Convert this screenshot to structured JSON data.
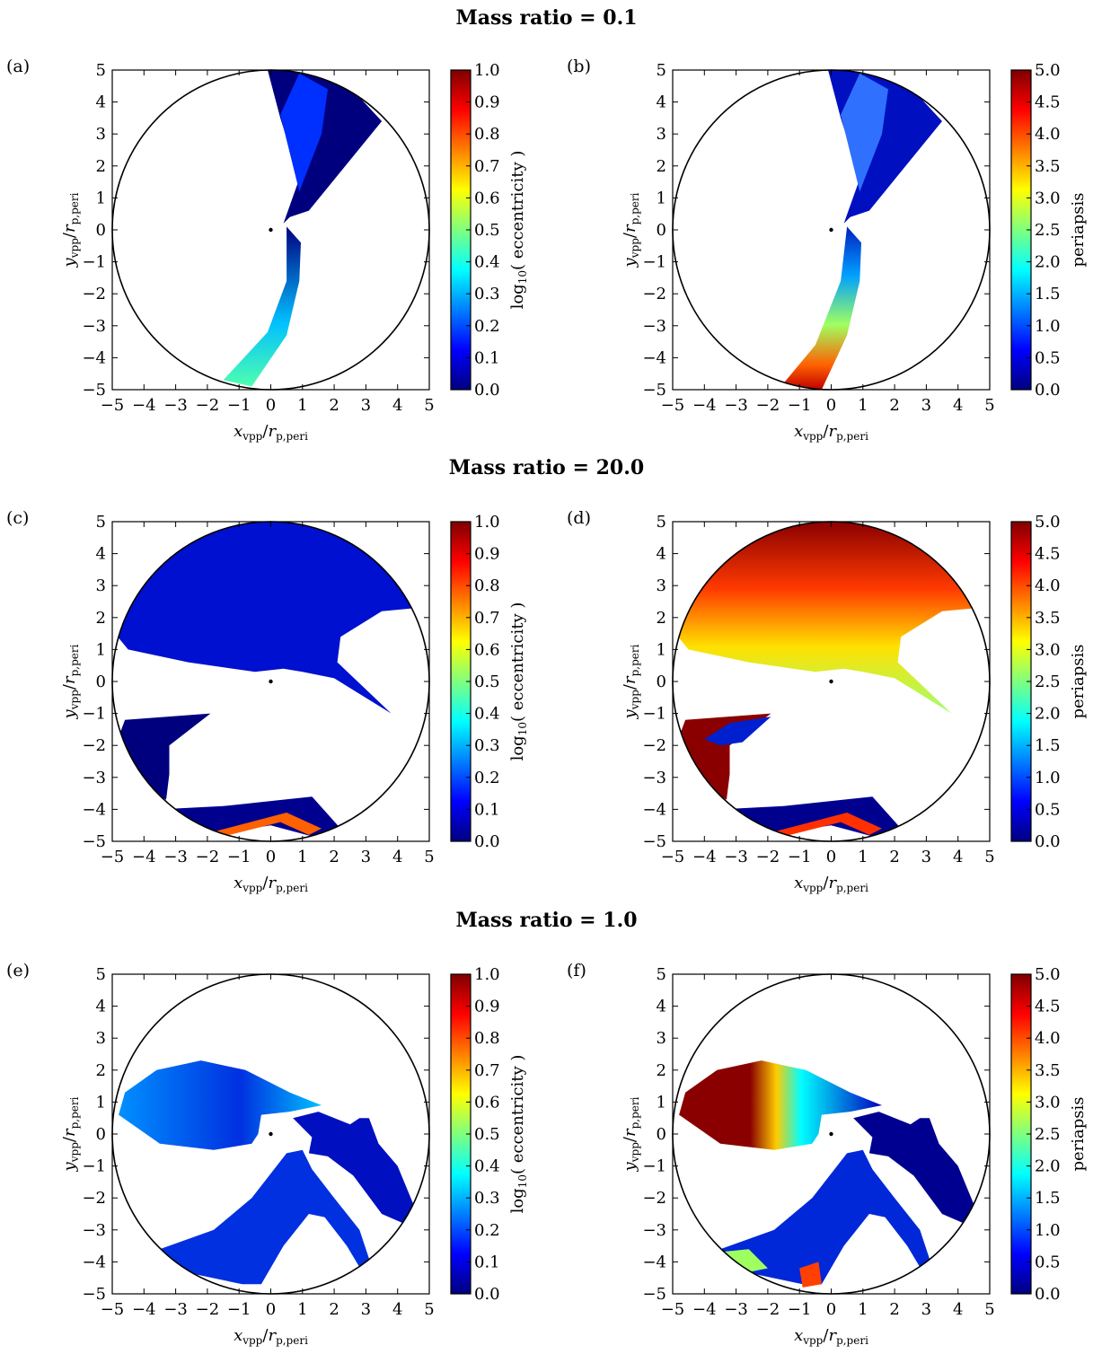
{
  "row_titles": [
    "Mass ratio = 0.1",
    "Mass ratio = 20.0",
    "Mass ratio = 1.0"
  ],
  "colormap": [
    "#00007f",
    "#0000ff",
    "#007fff",
    "#00ffff",
    "#7fff7f",
    "#ffff00",
    "#ff7f00",
    "#ff0000",
    "#7f0000"
  ],
  "chart_data": [
    {
      "panel": "(a)",
      "type": "heatmap",
      "row_title": "Mass ratio = 0.1",
      "xlabel": "x_vpp/r_p,peri",
      "ylabel": "y_vpp/r_p,peri",
      "xlim": [
        -5,
        5
      ],
      "ylim": [
        -5,
        5
      ],
      "xticks": [
        "−5",
        "−4",
        "−3",
        "−2",
        "−1",
        "0",
        "1",
        "2",
        "3",
        "4",
        "5"
      ],
      "yticks": [
        "−5",
        "−4",
        "−3",
        "−2",
        "−1",
        "0",
        "1",
        "2",
        "3",
        "4",
        "5"
      ],
      "colorbar_label": "log10( eccentricity )",
      "colorbar_range": [
        0.0,
        1.0
      ],
      "colorbar_ticks": [
        "0.0",
        "0.1",
        "0.2",
        "0.3",
        "0.4",
        "0.5",
        "0.6",
        "0.7",
        "0.8",
        "0.9",
        "1.0"
      ],
      "boundary_radius": 5,
      "central_point": [
        0,
        0
      ]
    },
    {
      "panel": "(b)",
      "type": "heatmap",
      "row_title": "Mass ratio = 0.1",
      "xlabel": "x_vpp/r_p,peri",
      "ylabel": "y_vpp/r_p,peri",
      "xlim": [
        -5,
        5
      ],
      "ylim": [
        -5,
        5
      ],
      "xticks": [
        "−5",
        "−4",
        "−3",
        "−2",
        "−1",
        "0",
        "1",
        "2",
        "3",
        "4",
        "5"
      ],
      "yticks": [
        "−5",
        "−4",
        "−3",
        "−2",
        "−1",
        "0",
        "1",
        "2",
        "3",
        "4",
        "5"
      ],
      "colorbar_label": "periapsis",
      "colorbar_range": [
        0.0,
        5.0
      ],
      "colorbar_ticks": [
        "0.0",
        "0.5",
        "1.0",
        "1.5",
        "2.0",
        "2.5",
        "3.0",
        "3.5",
        "4.0",
        "4.5",
        "5.0"
      ],
      "boundary_radius": 5,
      "central_point": [
        0,
        0
      ]
    },
    {
      "panel": "(c)",
      "type": "heatmap",
      "row_title": "Mass ratio = 20.0",
      "xlabel": "x_vpp/r_p,peri",
      "ylabel": "y_vpp/r_p,peri",
      "xlim": [
        -5,
        5
      ],
      "ylim": [
        -5,
        5
      ],
      "xticks": [
        "−5",
        "−4",
        "−3",
        "−2",
        "−1",
        "0",
        "1",
        "2",
        "3",
        "4",
        "5"
      ],
      "yticks": [
        "−5",
        "−4",
        "−3",
        "−2",
        "−1",
        "0",
        "1",
        "2",
        "3",
        "4",
        "5"
      ],
      "colorbar_label": "log10( eccentricity )",
      "colorbar_range": [
        0.0,
        1.0
      ],
      "colorbar_ticks": [
        "0.0",
        "0.1",
        "0.2",
        "0.3",
        "0.4",
        "0.5",
        "0.6",
        "0.7",
        "0.8",
        "0.9",
        "1.0"
      ],
      "boundary_radius": 5,
      "central_point": [
        0,
        0
      ]
    },
    {
      "panel": "(d)",
      "type": "heatmap",
      "row_title": "Mass ratio = 20.0",
      "xlabel": "x_vpp/r_p,peri",
      "ylabel": "y_vpp/r_p,peri",
      "xlim": [
        -5,
        5
      ],
      "ylim": [
        -5,
        5
      ],
      "xticks": [
        "−5",
        "−4",
        "−3",
        "−2",
        "−1",
        "0",
        "1",
        "2",
        "3",
        "4",
        "5"
      ],
      "yticks": [
        "−5",
        "−4",
        "−3",
        "−2",
        "−1",
        "0",
        "1",
        "2",
        "3",
        "4",
        "5"
      ],
      "colorbar_label": "periapsis",
      "colorbar_range": [
        0.0,
        5.0
      ],
      "colorbar_ticks": [
        "0.0",
        "0.5",
        "1.0",
        "1.5",
        "2.0",
        "2.5",
        "3.0",
        "3.5",
        "4.0",
        "4.5",
        "5.0"
      ],
      "boundary_radius": 5,
      "central_point": [
        0,
        0
      ]
    },
    {
      "panel": "(e)",
      "type": "heatmap",
      "row_title": "Mass ratio = 1.0",
      "xlabel": "x_vpp/r_p,peri",
      "ylabel": "y_vpp/r_p,peri",
      "xlim": [
        -5,
        5
      ],
      "ylim": [
        -5,
        5
      ],
      "xticks": [
        "−5",
        "−4",
        "−3",
        "−2",
        "−1",
        "0",
        "1",
        "2",
        "3",
        "4",
        "5"
      ],
      "yticks": [
        "−5",
        "−4",
        "−3",
        "−2",
        "−1",
        "0",
        "1",
        "2",
        "3",
        "4",
        "5"
      ],
      "colorbar_label": "log10( eccentricity )",
      "colorbar_range": [
        0.0,
        1.0
      ],
      "colorbar_ticks": [
        "0.0",
        "0.1",
        "0.2",
        "0.3",
        "0.4",
        "0.5",
        "0.6",
        "0.7",
        "0.8",
        "0.9",
        "1.0"
      ],
      "boundary_radius": 5,
      "central_point": [
        0,
        0
      ]
    },
    {
      "panel": "(f)",
      "type": "heatmap",
      "row_title": "Mass ratio = 1.0",
      "xlabel": "x_vpp/r_p,peri",
      "ylabel": "y_vpp/r_p,peri",
      "xlim": [
        -5,
        5
      ],
      "ylim": [
        -5,
        5
      ],
      "xticks": [
        "−5",
        "−4",
        "−3",
        "−2",
        "−1",
        "0",
        "1",
        "2",
        "3",
        "4",
        "5"
      ],
      "yticks": [
        "−5",
        "−4",
        "−3",
        "−2",
        "−1",
        "0",
        "1",
        "2",
        "3",
        "4",
        "5"
      ],
      "colorbar_label": "periapsis",
      "colorbar_range": [
        0.0,
        5.0
      ],
      "colorbar_ticks": [
        "0.0",
        "0.5",
        "1.0",
        "1.5",
        "2.0",
        "2.5",
        "3.0",
        "3.5",
        "4.0",
        "4.5",
        "5.0"
      ],
      "boundary_radius": 5,
      "central_point": [
        0,
        0
      ]
    }
  ]
}
